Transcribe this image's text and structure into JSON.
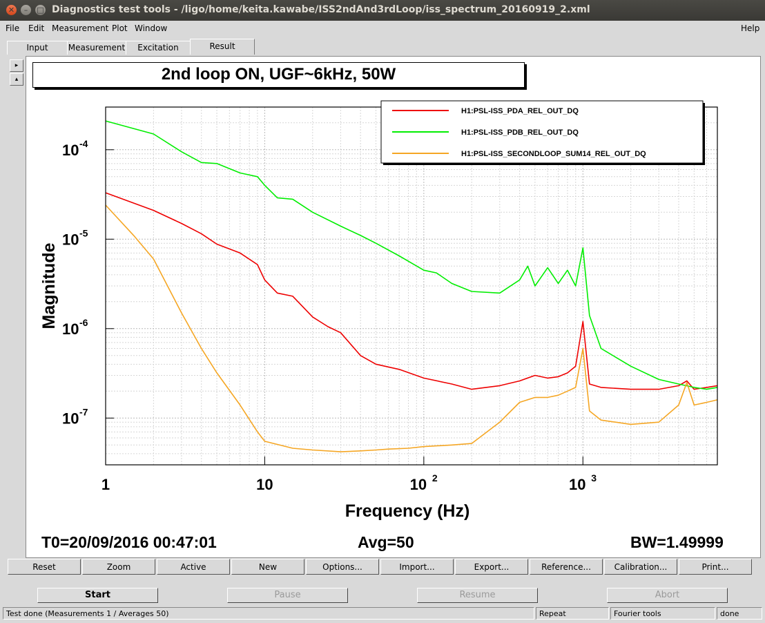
{
  "window": {
    "title": "Diagnostics test tools - /ligo/home/keita.kawabe/ISS2ndAnd3rdLoop/iss_spectrum_20160919_2.xml"
  },
  "menu": {
    "file": "File",
    "edit": "Edit",
    "measurement": "Measurement",
    "plot": "Plot",
    "window": "Window",
    "help": "Help"
  },
  "tabs": [
    "Input",
    "Measurement",
    "Excitation",
    "Result"
  ],
  "info": {
    "t0": "T0=20/09/2016 00:47:01",
    "avg": "Avg=50",
    "bw": "BW=1.49999"
  },
  "buttons": [
    "Reset",
    "Zoom",
    "Active",
    "New",
    "Options...",
    "Import...",
    "Export...",
    "Reference...",
    "Calibration...",
    "Print..."
  ],
  "controls": [
    "Start",
    "Pause",
    "Resume",
    "Abort"
  ],
  "status": {
    "message": "Test done (Measurements 1 / Averages 50)",
    "mode": "Repeat",
    "tool": "Fourier tools",
    "state": "done"
  },
  "colors": {
    "pda": "#ee0000",
    "pdb": "#00ee00",
    "secondloop": "#f5a623"
  },
  "chart_data": {
    "type": "line",
    "title": "2nd loop ON, UGF~6kHz, 50W",
    "xlabel": "Frequency (Hz)",
    "ylabel": "Magnitude",
    "xscale": "log",
    "yscale": "log",
    "xlim": [
      1,
      7000
    ],
    "ylim": [
      3e-08,
      0.0003
    ],
    "grid": true,
    "legend": "top-right",
    "x_ticks": [
      {
        "value": 1,
        "label": "1"
      },
      {
        "value": 10,
        "label": "10"
      },
      {
        "value": 100,
        "label": "10",
        "exp": "2"
      },
      {
        "value": 1000,
        "label": "10",
        "exp": "3"
      }
    ],
    "y_ticks": [
      {
        "value": 0.0001,
        "label": "10",
        "exp": "-4"
      },
      {
        "value": 1e-05,
        "label": "10",
        "exp": "-5"
      },
      {
        "value": 1e-06,
        "label": "10",
        "exp": "-6"
      },
      {
        "value": 1e-07,
        "label": "10",
        "exp": "-7"
      }
    ],
    "series": [
      {
        "name": "H1:PSL-ISS_PDA_REL_OUT_DQ",
        "color": "#ee0000",
        "x": [
          1,
          2,
          3,
          4,
          5,
          7,
          9,
          10,
          12,
          15,
          20,
          25,
          30,
          40,
          50,
          70,
          100,
          150,
          200,
          300,
          400,
          500,
          600,
          700,
          800,
          900,
          1000,
          1100,
          1300,
          2000,
          3000,
          4000,
          4500,
          5000,
          6000,
          7000
        ],
        "y": [
          3.3e-05,
          2.1e-05,
          1.5e-05,
          1.15e-05,
          8.8e-06,
          7e-06,
          5.2e-06,
          3.5e-06,
          2.5e-06,
          2.3e-06,
          1.35e-06,
          1.05e-06,
          9e-07,
          5e-07,
          4e-07,
          3.5e-07,
          2.8e-07,
          2.4e-07,
          2.1e-07,
          2.3e-07,
          2.6e-07,
          3e-07,
          2.8e-07,
          2.9e-07,
          3.2e-07,
          3.8e-07,
          1.2e-06,
          2.4e-07,
          2.2e-07,
          2.1e-07,
          2.1e-07,
          2.3e-07,
          2.6e-07,
          2.1e-07,
          2.2e-07,
          2.3e-07
        ]
      },
      {
        "name": "H1:PSL-ISS_PDB_REL_OUT_DQ",
        "color": "#00ee00",
        "x": [
          1,
          2,
          3,
          4,
          5,
          7,
          9,
          10,
          12,
          15,
          20,
          30,
          40,
          50,
          70,
          100,
          120,
          150,
          200,
          300,
          400,
          450,
          500,
          600,
          700,
          800,
          900,
          1000,
          1100,
          1300,
          2000,
          3000,
          4000,
          5000,
          6000,
          7000
        ],
        "y": [
          0.00021,
          0.00015,
          9.5e-05,
          7.2e-05,
          7e-05,
          5.5e-05,
          5e-05,
          4e-05,
          2.9e-05,
          2.8e-05,
          2e-05,
          1.4e-05,
          1.1e-05,
          9e-06,
          6.5e-06,
          4.5e-06,
          4.2e-06,
          3.2e-06,
          2.6e-06,
          2.5e-06,
          3.5e-06,
          5e-06,
          3e-06,
          4.8e-06,
          3.2e-06,
          4.5e-06,
          3e-06,
          8e-06,
          1.4e-06,
          6e-07,
          3.8e-07,
          2.7e-07,
          2.4e-07,
          2.2e-07,
          2.1e-07,
          2.2e-07
        ]
      },
      {
        "name": "H1:PSL-ISS_SECONDLOOP_SUM14_REL_OUT_DQ",
        "color": "#f5a623",
        "x": [
          1,
          1.5,
          2,
          3,
          4,
          5,
          7,
          9,
          10,
          15,
          20,
          30,
          40,
          50,
          60,
          80,
          100,
          150,
          200,
          300,
          400,
          500,
          600,
          700,
          800,
          900,
          1000,
          1100,
          1300,
          2000,
          3000,
          4000,
          4500,
          5000,
          6000,
          7000
        ],
        "y": [
          2.4e-05,
          1.1e-05,
          6e-06,
          1.5e-06,
          6e-07,
          3.2e-07,
          1.4e-07,
          7e-08,
          5.5e-08,
          4.6e-08,
          4.4e-08,
          4.2e-08,
          4.3e-08,
          4.4e-08,
          4.5e-08,
          4.6e-08,
          4.8e-08,
          5e-08,
          5.2e-08,
          9e-08,
          1.5e-07,
          1.7e-07,
          1.7e-07,
          1.8e-07,
          2e-07,
          2.2e-07,
          6e-07,
          1.2e-07,
          9.5e-08,
          8.5e-08,
          9e-08,
          1.4e-07,
          2.5e-07,
          1.4e-07,
          1.5e-07,
          1.6e-07
        ]
      }
    ]
  }
}
